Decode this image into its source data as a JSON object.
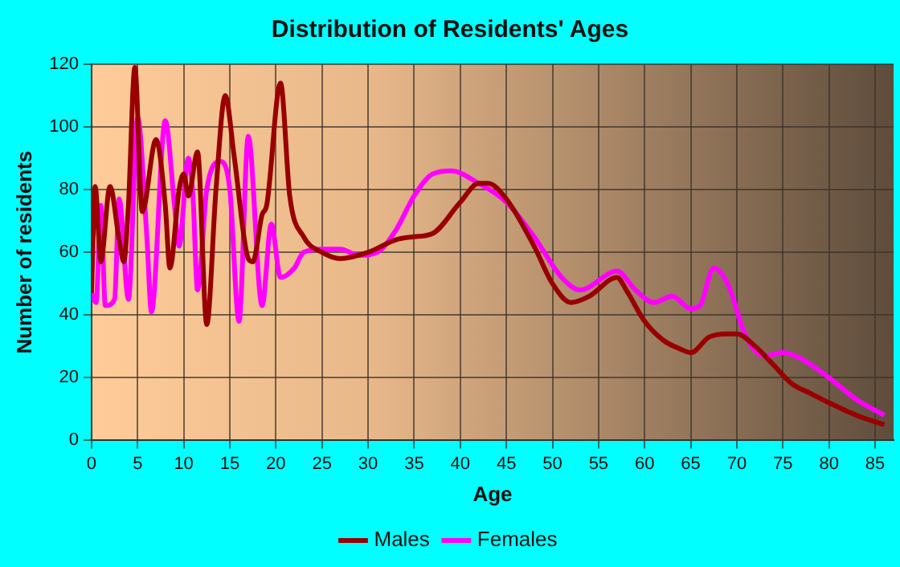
{
  "chart_data": {
    "type": "line",
    "title": "Distribution of Residents' Ages",
    "xlabel": "Age",
    "ylabel": "Number of residents",
    "xlim": [
      0,
      87
    ],
    "xticks": [
      0,
      5,
      10,
      15,
      20,
      25,
      30,
      35,
      40,
      45,
      50,
      55,
      60,
      65,
      70,
      75,
      80,
      85
    ],
    "ylim": [
      0,
      120
    ],
    "yticks": [
      0,
      20,
      40,
      60,
      80,
      100,
      120
    ],
    "grid": true,
    "legend": "bottom",
    "marker": "none",
    "line_style": "solid",
    "series": [
      {
        "name": "Males",
        "color": "#990000",
        "x": [
          0,
          0.4,
          1,
          2,
          3,
          3.5,
          4,
          4.7,
          5.5,
          7,
          8,
          8.5,
          9.5,
          10,
          10.5,
          11.5,
          12.5,
          13.5,
          14.5,
          15.5,
          17,
          17.5,
          18.5,
          19,
          20.5,
          21.5,
          23,
          25,
          27,
          30,
          33,
          35,
          37,
          40,
          42,
          43,
          45,
          48,
          50,
          52,
          54,
          57,
          58,
          60,
          62,
          64,
          65,
          67,
          69,
          70,
          72,
          74,
          76,
          78,
          80,
          83,
          86
        ],
        "values": [
          47,
          81,
          57,
          81,
          64,
          57,
          75,
          119,
          73,
          96,
          75,
          55,
          80,
          85,
          78,
          92,
          37,
          80,
          110,
          90,
          58,
          57,
          72,
          75,
          114,
          78,
          65,
          60,
          58,
          60,
          64,
          65,
          66,
          76,
          82,
          82,
          77,
          62,
          50,
          44,
          46,
          52,
          48,
          38,
          32,
          29,
          28,
          33,
          34,
          34,
          30,
          24,
          18,
          15,
          12,
          8,
          5
        ]
      },
      {
        "name": "Females",
        "color": "#ff00ff",
        "x": [
          0,
          0.5,
          1,
          1.5,
          2.5,
          3,
          4,
          5,
          6,
          6.5,
          8,
          9,
          9.5,
          10.5,
          11,
          11.5,
          12.5,
          14,
          15,
          16,
          17,
          18.5,
          19.5,
          20.5,
          22,
          23,
          25,
          27,
          29,
          31,
          33,
          35,
          37,
          39,
          42,
          45,
          48,
          51,
          53,
          57,
          59,
          61,
          63,
          65,
          66,
          67.5,
          69,
          71,
          73,
          75,
          77,
          80,
          83,
          86
        ],
        "values": [
          47,
          44,
          75,
          43,
          45,
          77,
          45,
          103,
          65,
          41,
          102,
          75,
          62,
          90,
          78,
          48,
          80,
          89,
          80,
          38,
          97,
          43,
          69,
          52,
          55,
          60,
          61,
          61,
          59,
          60,
          67,
          78,
          85,
          86,
          82,
          76,
          65,
          52,
          48,
          54,
          48,
          44,
          46,
          42,
          43,
          55,
          50,
          33,
          27,
          28,
          26,
          20,
          13,
          8
        ]
      }
    ]
  }
}
